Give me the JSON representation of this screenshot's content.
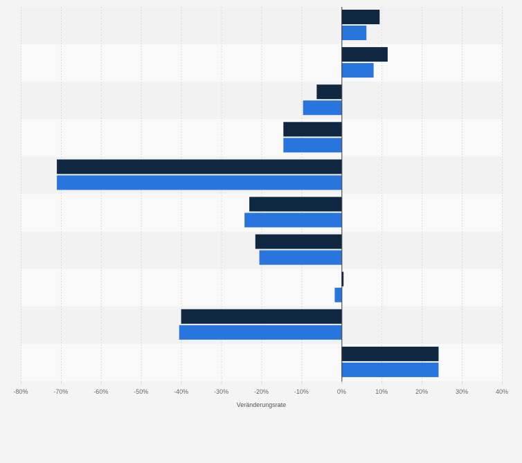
{
  "chart_data": {
    "type": "bar",
    "orientation": "horizontal",
    "categories": [
      "",
      "",
      "",
      "",
      "",
      "",
      "",
      "",
      "",
      ""
    ],
    "series": [
      {
        "values": [
          9.5,
          11.5,
          -6.2,
          -14.5,
          -71,
          -23,
          -21.5,
          0.5,
          -40,
          24.2
        ]
      },
      {
        "values": [
          6.2,
          8.0,
          -9.6,
          -14.5,
          -71,
          -24.2,
          -20.5,
          -1.7,
          -40.5,
          24.2
        ]
      }
    ],
    "xlabel": "Veränderungsrate",
    "ylabel": "",
    "xlim": [
      -80,
      40
    ],
    "xticks": [
      -80,
      -70,
      -60,
      -50,
      -40,
      -30,
      -20,
      -10,
      0,
      10,
      20,
      30,
      40
    ],
    "tick_suffix": "%",
    "grid": "vertical-dashed",
    "legend": "none",
    "colors": {
      "series_1": "#0f2741",
      "series_2": "#2876dd",
      "band_dark": "#f2f2f2",
      "band_light": "#f9f9f9",
      "grid": "#d9d9d9",
      "zero_line": "#333333"
    }
  }
}
